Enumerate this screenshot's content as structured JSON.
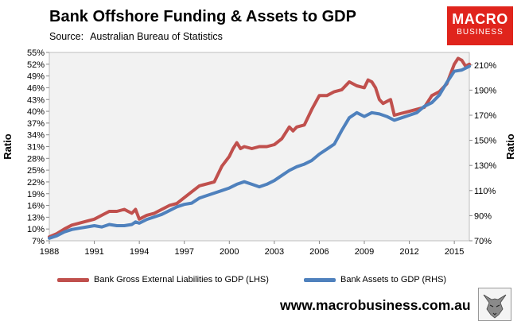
{
  "header": {
    "title": "Bank Offshore Funding & Assets to GDP",
    "source_label": "Source:",
    "source_value": "Australian Bureau of Statistics"
  },
  "logo": {
    "line1": "MACRO",
    "line2": "BUSINESS"
  },
  "website": "www.macrobusiness.com.au",
  "colors": {
    "lhs_series": "#c0504d",
    "rhs_series": "#4f81bd",
    "plot_bg": "#f2f2f2",
    "logo_bg": "#e0241c"
  },
  "chart_data": {
    "type": "line",
    "title": "Bank Offshore Funding & Assets to GDP",
    "subtitle": "Source:  Australian Bureau of Statistics",
    "ylabel_left": "Ratio",
    "ylabel_right": "Ratio",
    "ylim_left": [
      7,
      55
    ],
    "ylim_right": [
      70,
      220
    ],
    "xlim": [
      1988,
      2016
    ],
    "x_ticks": [
      "1988",
      "1991",
      "1994",
      "1997",
      "2000",
      "2003",
      "2006",
      "2009",
      "2012",
      "2015"
    ],
    "y_left_ticks": [
      "7%",
      "10%",
      "13%",
      "16%",
      "19%",
      "22%",
      "25%",
      "28%",
      "31%",
      "34%",
      "37%",
      "40%",
      "43%",
      "46%",
      "49%",
      "52%",
      "55%"
    ],
    "y_right_ticks": [
      "70%",
      "90%",
      "110%",
      "130%",
      "150%",
      "170%",
      "190%",
      "210%"
    ],
    "grid": false,
    "legend_position": "bottom",
    "series": [
      {
        "name": "Bank Gross External Liabilities to GDP (LHS)",
        "axis": "left",
        "color": "#c0504d",
        "x": [
          1988.0,
          1988.5,
          1989.0,
          1989.5,
          1990.0,
          1990.5,
          1991.0,
          1991.5,
          1992.0,
          1992.5,
          1993.0,
          1993.25,
          1993.5,
          1993.75,
          1994.0,
          1994.5,
          1995.0,
          1995.5,
          1996.0,
          1996.5,
          1997.0,
          1997.5,
          1998.0,
          1998.5,
          1999.0,
          1999.5,
          2000.0,
          2000.25,
          2000.5,
          2000.75,
          2001.0,
          2001.5,
          2002.0,
          2002.5,
          2003.0,
          2003.5,
          2004.0,
          2004.25,
          2004.5,
          2005.0,
          2005.5,
          2006.0,
          2006.5,
          2007.0,
          2007.5,
          2008.0,
          2008.5,
          2009.0,
          2009.25,
          2009.5,
          2009.75,
          2010.0,
          2010.25,
          2010.5,
          2010.75,
          2011.0,
          2011.5,
          2012.0,
          2012.5,
          2013.0,
          2013.5,
          2014.0,
          2014.5,
          2015.0,
          2015.25,
          2015.5,
          2015.75,
          2016.0
        ],
        "values": [
          8.0,
          8.8,
          10.0,
          11.0,
          11.5,
          12.0,
          12.5,
          13.5,
          14.5,
          14.5,
          15.0,
          14.5,
          14.0,
          15.0,
          12.5,
          13.5,
          14.0,
          15.0,
          16.0,
          16.5,
          18.0,
          19.5,
          21.0,
          21.5,
          22.0,
          26.0,
          28.5,
          30.5,
          32.0,
          30.5,
          31.0,
          30.5,
          31.0,
          31.0,
          31.5,
          33.0,
          36.0,
          35.0,
          36.0,
          36.5,
          40.5,
          44.0,
          44.0,
          45.0,
          45.5,
          47.5,
          46.5,
          46.0,
          48.0,
          47.5,
          46.0,
          43.0,
          42.0,
          42.5,
          43.0,
          39.0,
          39.5,
          40.0,
          40.5,
          41.0,
          44.0,
          45.0,
          47.0,
          52.0,
          53.5,
          53.0,
          51.5,
          52.0
        ]
      },
      {
        "name": "Bank Assets to GDP (RHS)",
        "axis": "right",
        "color": "#4f81bd",
        "x": [
          1988.0,
          1988.5,
          1989.0,
          1989.5,
          1990.0,
          1990.5,
          1991.0,
          1991.5,
          1992.0,
          1992.5,
          1993.0,
          1993.5,
          1993.75,
          1994.0,
          1994.5,
          1995.0,
          1995.5,
          1996.0,
          1996.5,
          1997.0,
          1997.5,
          1998.0,
          1998.5,
          1999.0,
          1999.5,
          2000.0,
          2000.5,
          2001.0,
          2001.5,
          2002.0,
          2002.5,
          2003.0,
          2003.5,
          2004.0,
          2004.5,
          2005.0,
          2005.5,
          2006.0,
          2006.5,
          2007.0,
          2007.5,
          2008.0,
          2008.5,
          2009.0,
          2009.5,
          2010.0,
          2010.5,
          2011.0,
          2011.5,
          2012.0,
          2012.5,
          2013.0,
          2013.5,
          2014.0,
          2014.5,
          2015.0,
          2015.5,
          2016.0
        ],
        "values": [
          72,
          74,
          77,
          79,
          80,
          81,
          82,
          81,
          83,
          82,
          82,
          83,
          85,
          84,
          87,
          89,
          91,
          94,
          97,
          99,
          100,
          104,
          106,
          108,
          110,
          112,
          115,
          117,
          115,
          113,
          115,
          118,
          122,
          126,
          129,
          131,
          134,
          139,
          143,
          147,
          158,
          168,
          172,
          169,
          172,
          171,
          169,
          166,
          168,
          170,
          172,
          177,
          180,
          186,
          196,
          205,
          206,
          209
        ]
      }
    ]
  }
}
